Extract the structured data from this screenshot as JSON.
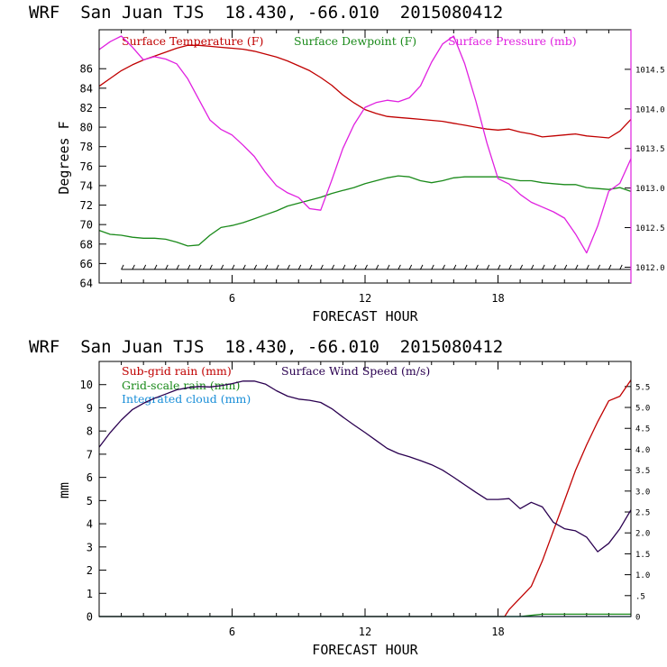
{
  "chart_data": [
    {
      "type": "line",
      "title": "WRF  San Juan TJS  18.430, -66.010  2015080412",
      "xlabel": "FORECAST HOUR",
      "ylabel": "Degrees F",
      "xlim": [
        0,
        24
      ],
      "ylim": [
        64,
        90
      ],
      "y2lim": [
        1011.8,
        1015.0
      ],
      "xticks": [
        6,
        12,
        18
      ],
      "yticks": [
        64,
        66,
        68,
        70,
        72,
        74,
        76,
        78,
        80,
        82,
        84,
        86
      ],
      "y2ticks": [
        1012.0,
        1012.5,
        1013.0,
        1013.5,
        1014.0,
        1014.5
      ],
      "y2tick_labels": [
        "1012.0",
        "1012.5",
        "1013.0",
        "1013.5",
        "1014.0",
        "1014.5"
      ],
      "legend_placement": "top",
      "series": [
        {
          "name": "Surface Temperature (F)",
          "color": "#c00000",
          "axis": "left",
          "x": [
            0,
            0.5,
            1,
            1.5,
            2,
            2.5,
            3,
            3.5,
            4,
            4.5,
            5,
            5.5,
            6,
            6.5,
            7,
            7.5,
            8,
            8.5,
            9,
            9.5,
            10,
            10.5,
            11,
            11.5,
            12,
            12.5,
            13,
            13.5,
            14,
            14.5,
            15,
            15.5,
            16,
            16.5,
            17,
            17.5,
            18,
            18.5,
            19,
            19.5,
            20,
            20.5,
            21,
            21.5,
            22,
            22.5,
            23,
            23.5,
            24
          ],
          "values": [
            84.2,
            85.0,
            85.8,
            86.4,
            86.9,
            87.3,
            87.7,
            88.1,
            88.4,
            88.4,
            88.3,
            88.2,
            88.1,
            88.0,
            87.8,
            87.5,
            87.2,
            86.8,
            86.3,
            85.8,
            85.1,
            84.3,
            83.3,
            82.5,
            81.8,
            81.4,
            81.1,
            81.0,
            80.9,
            80.8,
            80.7,
            80.6,
            80.4,
            80.2,
            80.0,
            79.8,
            79.7,
            79.8,
            79.5,
            79.3,
            79.0,
            79.1,
            79.2,
            79.3,
            79.1,
            79.0,
            78.9,
            79.6,
            80.8
          ]
        },
        {
          "name": "Surface Dewpoint (F)",
          "color": "#1a8a1a",
          "axis": "left",
          "x": [
            0,
            0.5,
            1,
            1.5,
            2,
            2.5,
            3,
            3.5,
            4,
            4.5,
            5,
            5.5,
            6,
            6.5,
            7,
            7.5,
            8,
            8.5,
            9,
            9.5,
            10,
            10.5,
            11,
            11.5,
            12,
            12.5,
            13,
            13.5,
            14,
            14.5,
            15,
            15.5,
            16,
            16.5,
            17,
            17.5,
            18,
            18.5,
            19,
            19.5,
            20,
            20.5,
            21,
            21.5,
            22,
            22.5,
            23,
            23.5,
            24
          ],
          "values": [
            69.4,
            69.0,
            68.9,
            68.7,
            68.6,
            68.6,
            68.5,
            68.2,
            67.8,
            67.9,
            68.9,
            69.7,
            69.9,
            70.2,
            70.6,
            71.0,
            71.4,
            71.9,
            72.2,
            72.5,
            72.8,
            73.2,
            73.5,
            73.8,
            74.2,
            74.5,
            74.8,
            75.0,
            74.9,
            74.5,
            74.3,
            74.5,
            74.8,
            74.9,
            74.9,
            74.9,
            74.9,
            74.7,
            74.5,
            74.5,
            74.3,
            74.2,
            74.1,
            74.1,
            73.8,
            73.7,
            73.6,
            73.8,
            73.4
          ]
        },
        {
          "name": "Surface Pressure (mb)",
          "color": "#e020e0",
          "axis": "right",
          "x": [
            0,
            0.5,
            1,
            1.5,
            2,
            2.5,
            3,
            3.5,
            4,
            4.5,
            5,
            5.5,
            6,
            6.5,
            7,
            7.5,
            8,
            8.5,
            9,
            9.5,
            10,
            10.5,
            11,
            11.5,
            12,
            12.5,
            13,
            13.5,
            14,
            14.5,
            15,
            15.5,
            16,
            16.5,
            17,
            17.5,
            18,
            18.5,
            19,
            19.5,
            20,
            20.5,
            21,
            21.5,
            22,
            22.5,
            23,
            23.5,
            24
          ],
          "values": [
            1014.75,
            1014.85,
            1014.92,
            1014.78,
            1014.62,
            1014.66,
            1014.63,
            1014.57,
            1014.38,
            1014.12,
            1013.86,
            1013.74,
            1013.67,
            1013.54,
            1013.4,
            1013.2,
            1013.03,
            1012.94,
            1012.88,
            1012.74,
            1012.72,
            1013.1,
            1013.5,
            1013.8,
            1014.02,
            1014.08,
            1014.11,
            1014.09,
            1014.14,
            1014.29,
            1014.59,
            1014.82,
            1014.92,
            1014.57,
            1014.1,
            1013.57,
            1013.12,
            1013.05,
            1012.92,
            1012.82,
            1012.76,
            1012.7,
            1012.62,
            1012.42,
            1012.18,
            1012.52,
            1012.96,
            1013.06,
            1013.37
          ]
        }
      ],
      "wind_barbs_y": 65.4
    },
    {
      "type": "line",
      "title": "WRF  San Juan TJS  18.430, -66.010  2015080412",
      "xlabel": "FORECAST HOUR",
      "ylabel": "mm",
      "xlim": [
        0,
        24
      ],
      "ylim": [
        0,
        11
      ],
      "y2lim": [
        0,
        6.1
      ],
      "xticks": [
        6,
        12,
        18
      ],
      "yticks": [
        0,
        1,
        2,
        3,
        4,
        5,
        6,
        7,
        8,
        9,
        10
      ],
      "y2ticks": [
        0,
        0.5,
        1.0,
        1.5,
        2.0,
        2.5,
        3.0,
        3.5,
        4.0,
        4.5,
        5.0,
        5.5
      ],
      "y2tick_labels": [
        "0",
        ".5",
        "1.0",
        "1.5",
        "2.0",
        "2.5",
        "3.0",
        "3.5",
        "4.0",
        "4.5",
        "5.0",
        "5.5"
      ],
      "legend_placement": "top-left",
      "series": [
        {
          "name": "Sub-grid rain (mm)",
          "color": "#c00000",
          "axis": "left",
          "x": [
            0,
            18,
            18.3,
            18.5,
            19,
            19.5,
            20,
            20.5,
            21,
            21.5,
            22,
            22.5,
            23,
            23.5,
            24
          ],
          "values": [
            0,
            0,
            0,
            0.3,
            0.8,
            1.3,
            2.4,
            3.7,
            5.0,
            6.3,
            7.4,
            8.4,
            9.3,
            9.5,
            10.2
          ]
        },
        {
          "name": "Grid-scale rain (mm)",
          "color": "#1a8a1a",
          "axis": "left",
          "x": [
            0,
            19,
            19.5,
            20,
            24
          ],
          "values": [
            0,
            0,
            0.05,
            0.1,
            0.1
          ]
        },
        {
          "name": "Integrated cloud (mm)",
          "color": "#1a8fd8",
          "axis": "left",
          "x": [
            0,
            24
          ],
          "values": [
            0,
            0
          ]
        },
        {
          "name": "Surface Wind Speed (m/s)",
          "color": "#2a0050",
          "axis": "right",
          "x": [
            0,
            0.5,
            1,
            1.5,
            2,
            2.5,
            3,
            3.5,
            4,
            4.5,
            5,
            5.5,
            6,
            6.5,
            7,
            7.5,
            8,
            8.5,
            9,
            9.5,
            10,
            10.5,
            11,
            11.5,
            12,
            12.5,
            13,
            13.5,
            14,
            14.5,
            15,
            15.5,
            16,
            16.5,
            17,
            17.5,
            18,
            18.5,
            19,
            19.5,
            20,
            20.5,
            21,
            21.5,
            22,
            22.5,
            23,
            23.5,
            24
          ],
          "values": [
            4.05,
            4.4,
            4.7,
            4.95,
            5.1,
            5.22,
            5.32,
            5.42,
            5.47,
            5.5,
            5.49,
            5.52,
            5.57,
            5.63,
            5.63,
            5.56,
            5.4,
            5.27,
            5.2,
            5.17,
            5.12,
            4.97,
            4.77,
            4.58,
            4.4,
            4.21,
            4.02,
            3.9,
            3.82,
            3.73,
            3.63,
            3.5,
            3.33,
            3.15,
            2.97,
            2.8,
            2.8,
            2.82,
            2.58,
            2.73,
            2.62,
            2.25,
            2.1,
            2.05,
            1.9,
            1.55,
            1.75,
            2.1,
            2.55
          ]
        }
      ]
    }
  ]
}
